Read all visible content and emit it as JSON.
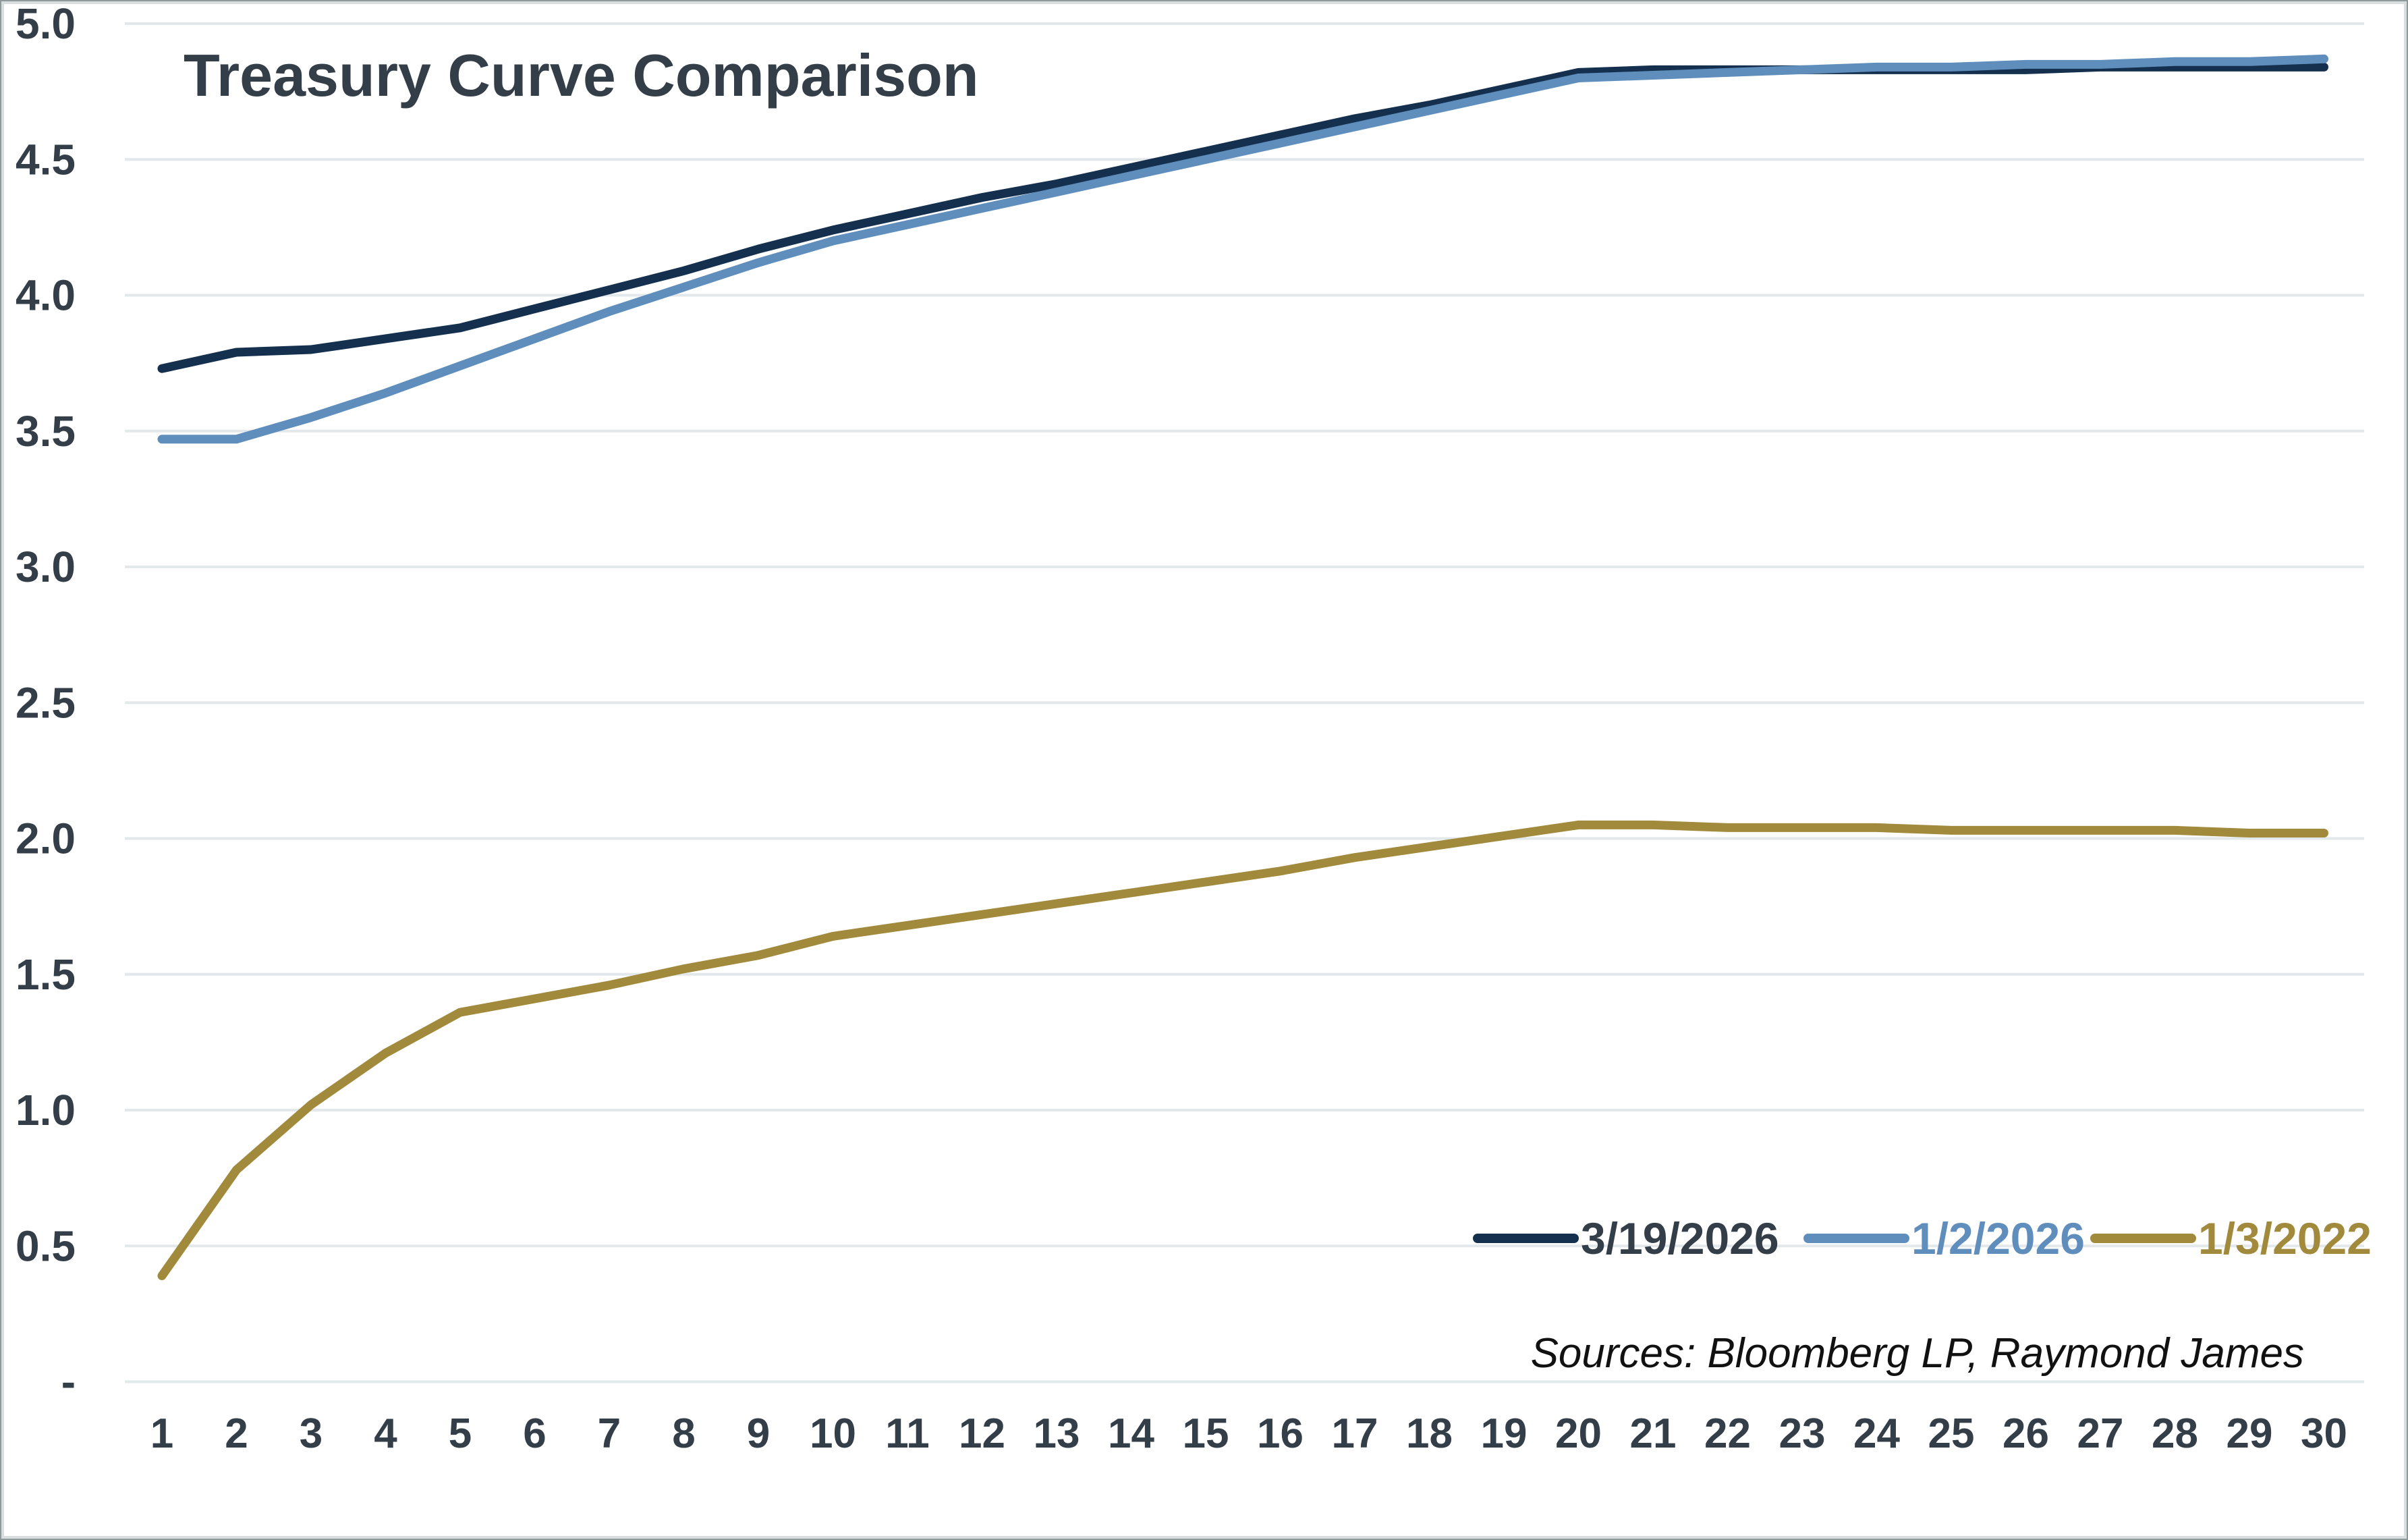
{
  "title": "Treasury Curve Comparison",
  "source_note": "Sources: Bloomberg LP, Raymond James",
  "colors": {
    "background": "#ffffff",
    "gridline": "#E3E8EB",
    "text_dark": "#333E48",
    "source_text": "#111111",
    "frame_outer": "#8E9999",
    "frame_inner": "#D8DEDF",
    "series_navy": "#14304E",
    "series_blue": "#5F8EBD",
    "series_gold": "#A28A3C"
  },
  "chart_data": {
    "type": "line",
    "title": "Treasury Curve Comparison",
    "xlabel": "",
    "ylabel": "",
    "x": [
      1,
      2,
      3,
      4,
      5,
      6,
      7,
      8,
      9,
      10,
      11,
      12,
      13,
      14,
      15,
      16,
      17,
      18,
      19,
      20,
      21,
      22,
      23,
      24,
      25,
      26,
      27,
      28,
      29,
      30
    ],
    "x_tick_labels": [
      "1",
      "2",
      "3",
      "4",
      "5",
      "6",
      "7",
      "8",
      "9",
      "10",
      "11",
      "12",
      "13",
      "14",
      "15",
      "16",
      "17",
      "18",
      "19",
      "20",
      "21",
      "22",
      "23",
      "24",
      "25",
      "26",
      "27",
      "28",
      "29",
      "30"
    ],
    "ylim": [
      0,
      5
    ],
    "grid": "horizontal",
    "legend_position": "bottom-right",
    "y_ticks": [
      {
        "value": 5.0,
        "label": "5.0"
      },
      {
        "value": 4.5,
        "label": "4.5"
      },
      {
        "value": 4.0,
        "label": "4.0"
      },
      {
        "value": 3.5,
        "label": "3.5"
      },
      {
        "value": 3.0,
        "label": "3.0"
      },
      {
        "value": 2.5,
        "label": "2.5"
      },
      {
        "value": 2.0,
        "label": "2.0"
      },
      {
        "value": 1.5,
        "label": "1.5"
      },
      {
        "value": 1.0,
        "label": "1.0"
      },
      {
        "value": 0.5,
        "label": "0.5"
      },
      {
        "value": 0.0,
        "label": "-"
      }
    ],
    "series": [
      {
        "name": "3/19/2026",
        "color": "#14304E",
        "label_color": "#333E48",
        "values": [
          3.73,
          3.79,
          3.8,
          3.84,
          3.88,
          3.95,
          4.02,
          4.09,
          4.17,
          4.24,
          4.3,
          4.36,
          4.41,
          4.47,
          4.53,
          4.59,
          4.65,
          4.7,
          4.76,
          4.82,
          4.83,
          4.83,
          4.83,
          4.83,
          4.83,
          4.83,
          4.84,
          4.84,
          4.84,
          4.84
        ]
      },
      {
        "name": "1/2/2026",
        "color": "#5F8EBD",
        "label_color": "#5F8EBD",
        "values": [
          3.47,
          3.47,
          3.55,
          3.64,
          3.74,
          3.84,
          3.94,
          4.03,
          4.12,
          4.2,
          4.26,
          4.32,
          4.38,
          4.44,
          4.5,
          4.56,
          4.62,
          4.68,
          4.74,
          4.8,
          4.81,
          4.82,
          4.83,
          4.84,
          4.84,
          4.85,
          4.85,
          4.86,
          4.86,
          4.87
        ]
      },
      {
        "name": "1/3/2022",
        "color": "#A28A3C",
        "label_color": "#A28A3C",
        "values": [
          0.39,
          0.78,
          1.02,
          1.21,
          1.36,
          1.41,
          1.46,
          1.52,
          1.57,
          1.64,
          1.68,
          1.72,
          1.76,
          1.8,
          1.84,
          1.88,
          1.93,
          1.97,
          2.01,
          2.05,
          2.05,
          2.04,
          2.04,
          2.04,
          2.03,
          2.03,
          2.03,
          2.03,
          2.02,
          2.02
        ]
      }
    ]
  }
}
